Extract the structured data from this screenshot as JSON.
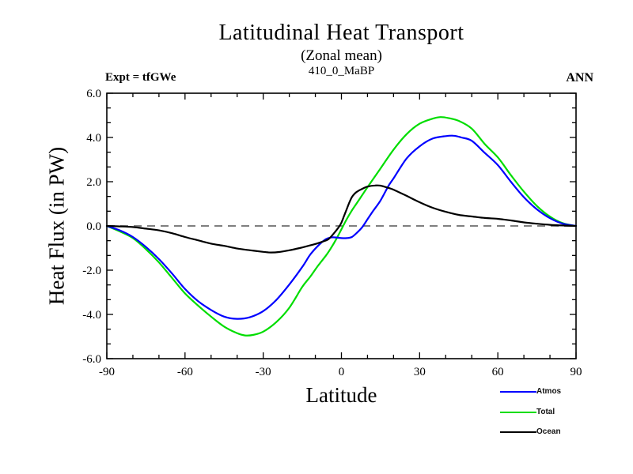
{
  "header": {
    "title": "Latitudinal Heat Transport",
    "subtitle": "(Zonal mean)",
    "run_label": "410_0_MaBP",
    "experiment_label": "Expt = tfGWe",
    "season_label": "ANN"
  },
  "chart_data": {
    "type": "line",
    "title": "Latitudinal Heat Transport",
    "subtitle": "(Zonal mean)",
    "xlabel": "Latitude",
    "ylabel": "Heat Flux (in PW)",
    "xlim": [
      -90,
      90
    ],
    "ylim": [
      -6,
      6
    ],
    "x_major_ticks": [
      -90,
      -60,
      -30,
      0,
      30,
      60,
      90
    ],
    "x_minor_step": 10,
    "y_major_ticks": [
      -6,
      -4,
      -2,
      0,
      2,
      4,
      6
    ],
    "y_minor_per_gap": 2,
    "y_tick_decimals": 1,
    "grid": false,
    "zero_line": {
      "show": true,
      "style": "dashed",
      "color": "#7f7f7f"
    },
    "frame_color": "#000000",
    "legend_position": "bottom-right-outside",
    "legend": [
      {
        "label": "Atmos",
        "color": "#0000ff"
      },
      {
        "label": "Total",
        "color": "#00dd00"
      },
      {
        "label": "Ocean",
        "color": "#000000"
      }
    ],
    "series": [
      {
        "name": "Total",
        "color": "#00dd00",
        "points": [
          [
            -90,
            0
          ],
          [
            -85,
            -0.25
          ],
          [
            -80,
            -0.55
          ],
          [
            -75,
            -1.05
          ],
          [
            -70,
            -1.65
          ],
          [
            -65,
            -2.35
          ],
          [
            -60,
            -3.05
          ],
          [
            -55,
            -3.6
          ],
          [
            -50,
            -4.1
          ],
          [
            -45,
            -4.55
          ],
          [
            -40,
            -4.85
          ],
          [
            -37,
            -4.95
          ],
          [
            -34,
            -4.93
          ],
          [
            -30,
            -4.78
          ],
          [
            -25,
            -4.35
          ],
          [
            -20,
            -3.7
          ],
          [
            -15,
            -2.75
          ],
          [
            -12,
            -2.3
          ],
          [
            -9,
            -1.8
          ],
          [
            -6,
            -1.35
          ],
          [
            -4,
            -1.0
          ],
          [
            -2,
            -0.6
          ],
          [
            0,
            -0.15
          ],
          [
            2,
            0.3
          ],
          [
            4,
            0.7
          ],
          [
            6,
            1.05
          ],
          [
            8,
            1.4
          ],
          [
            10,
            1.75
          ],
          [
            15,
            2.6
          ],
          [
            20,
            3.45
          ],
          [
            25,
            4.15
          ],
          [
            30,
            4.62
          ],
          [
            35,
            4.85
          ],
          [
            38,
            4.92
          ],
          [
            41,
            4.88
          ],
          [
            45,
            4.75
          ],
          [
            50,
            4.4
          ],
          [
            55,
            3.7
          ],
          [
            60,
            3.1
          ],
          [
            65,
            2.3
          ],
          [
            70,
            1.55
          ],
          [
            75,
            0.9
          ],
          [
            80,
            0.42
          ],
          [
            85,
            0.12
          ],
          [
            90,
            0
          ]
        ]
      },
      {
        "name": "Atmos",
        "color": "#0000ff",
        "points": [
          [
            -90,
            0
          ],
          [
            -85,
            -0.2
          ],
          [
            -80,
            -0.5
          ],
          [
            -75,
            -0.95
          ],
          [
            -70,
            -1.5
          ],
          [
            -65,
            -2.15
          ],
          [
            -60,
            -2.85
          ],
          [
            -55,
            -3.4
          ],
          [
            -50,
            -3.8
          ],
          [
            -45,
            -4.1
          ],
          [
            -40,
            -4.2
          ],
          [
            -35,
            -4.12
          ],
          [
            -30,
            -3.85
          ],
          [
            -25,
            -3.35
          ],
          [
            -20,
            -2.65
          ],
          [
            -15,
            -1.85
          ],
          [
            -12,
            -1.3
          ],
          [
            -9,
            -0.9
          ],
          [
            -6,
            -0.6
          ],
          [
            -4,
            -0.52
          ],
          [
            -2,
            -0.52
          ],
          [
            0,
            -0.55
          ],
          [
            2,
            -0.55
          ],
          [
            4,
            -0.5
          ],
          [
            6,
            -0.3
          ],
          [
            8,
            -0.05
          ],
          [
            10,
            0.3
          ],
          [
            12,
            0.65
          ],
          [
            15,
            1.15
          ],
          [
            18,
            1.8
          ],
          [
            20,
            2.15
          ],
          [
            25,
            3.05
          ],
          [
            30,
            3.6
          ],
          [
            35,
            3.95
          ],
          [
            40,
            4.06
          ],
          [
            43,
            4.08
          ],
          [
            46,
            4.0
          ],
          [
            50,
            3.85
          ],
          [
            55,
            3.3
          ],
          [
            60,
            2.75
          ],
          [
            65,
            2.0
          ],
          [
            70,
            1.3
          ],
          [
            75,
            0.75
          ],
          [
            80,
            0.35
          ],
          [
            85,
            0.1
          ],
          [
            90,
            0
          ]
        ]
      },
      {
        "name": "Ocean",
        "color": "#000000",
        "points": [
          [
            -90,
            0
          ],
          [
            -85,
            -0.02
          ],
          [
            -80,
            -0.05
          ],
          [
            -75,
            -0.12
          ],
          [
            -70,
            -0.2
          ],
          [
            -65,
            -0.33
          ],
          [
            -60,
            -0.5
          ],
          [
            -55,
            -0.65
          ],
          [
            -50,
            -0.8
          ],
          [
            -45,
            -0.9
          ],
          [
            -40,
            -1.02
          ],
          [
            -35,
            -1.1
          ],
          [
            -30,
            -1.17
          ],
          [
            -27,
            -1.2
          ],
          [
            -24,
            -1.18
          ],
          [
            -20,
            -1.1
          ],
          [
            -16,
            -1.0
          ],
          [
            -12,
            -0.88
          ],
          [
            -9,
            -0.78
          ],
          [
            -7,
            -0.7
          ],
          [
            -5,
            -0.6
          ],
          [
            -3,
            -0.35
          ],
          [
            -1,
            -0.05
          ],
          [
            0,
            0.15
          ],
          [
            1,
            0.45
          ],
          [
            2,
            0.75
          ],
          [
            3,
            1.05
          ],
          [
            4,
            1.3
          ],
          [
            5,
            1.45
          ],
          [
            6,
            1.55
          ],
          [
            8,
            1.68
          ],
          [
            10,
            1.78
          ],
          [
            13,
            1.83
          ],
          [
            15,
            1.82
          ],
          [
            18,
            1.72
          ],
          [
            20,
            1.64
          ],
          [
            25,
            1.36
          ],
          [
            30,
            1.07
          ],
          [
            35,
            0.82
          ],
          [
            40,
            0.64
          ],
          [
            45,
            0.5
          ],
          [
            50,
            0.43
          ],
          [
            55,
            0.36
          ],
          [
            60,
            0.32
          ],
          [
            65,
            0.25
          ],
          [
            70,
            0.16
          ],
          [
            75,
            0.1
          ],
          [
            80,
            0.05
          ],
          [
            85,
            0.02
          ],
          [
            90,
            0
          ]
        ]
      }
    ]
  }
}
